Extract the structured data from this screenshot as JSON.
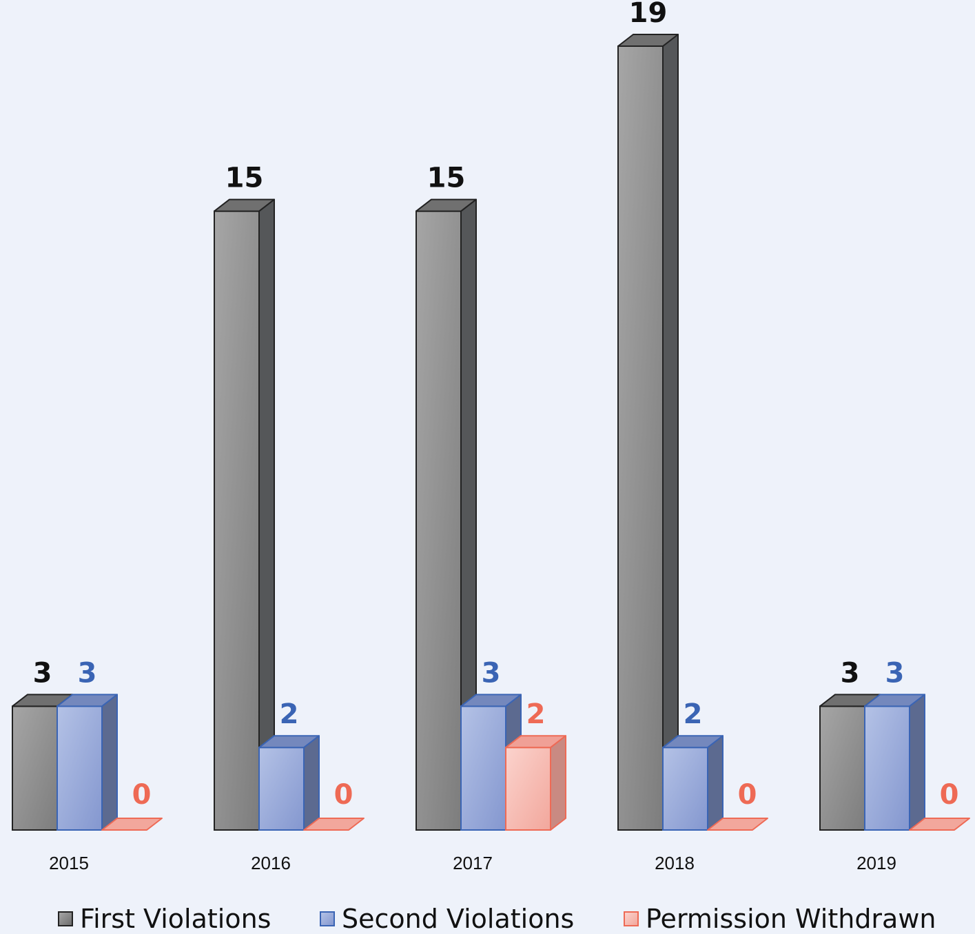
{
  "chart_data": {
    "type": "bar",
    "categories": [
      "2015",
      "2016",
      "2017",
      "2018",
      "2019"
    ],
    "series": [
      {
        "name": "First Violations",
        "values": [
          3,
          15,
          15,
          19,
          3
        ],
        "color": "#8c8c8c",
        "label_color": "#111111"
      },
      {
        "name": "Second Violations",
        "values": [
          3,
          2,
          3,
          2,
          3
        ],
        "color": "#9aaad8",
        "label_color": "#3a64b4"
      },
      {
        "name": "Permission Withdrawn",
        "values": [
          0,
          0,
          2,
          0,
          0
        ],
        "color": "#f6b5ae",
        "label_color": "#ee6a55"
      }
    ],
    "ylim": [
      0,
      19
    ],
    "grid": false,
    "legend_position": "bottom",
    "style": "3d-clustered-column"
  }
}
